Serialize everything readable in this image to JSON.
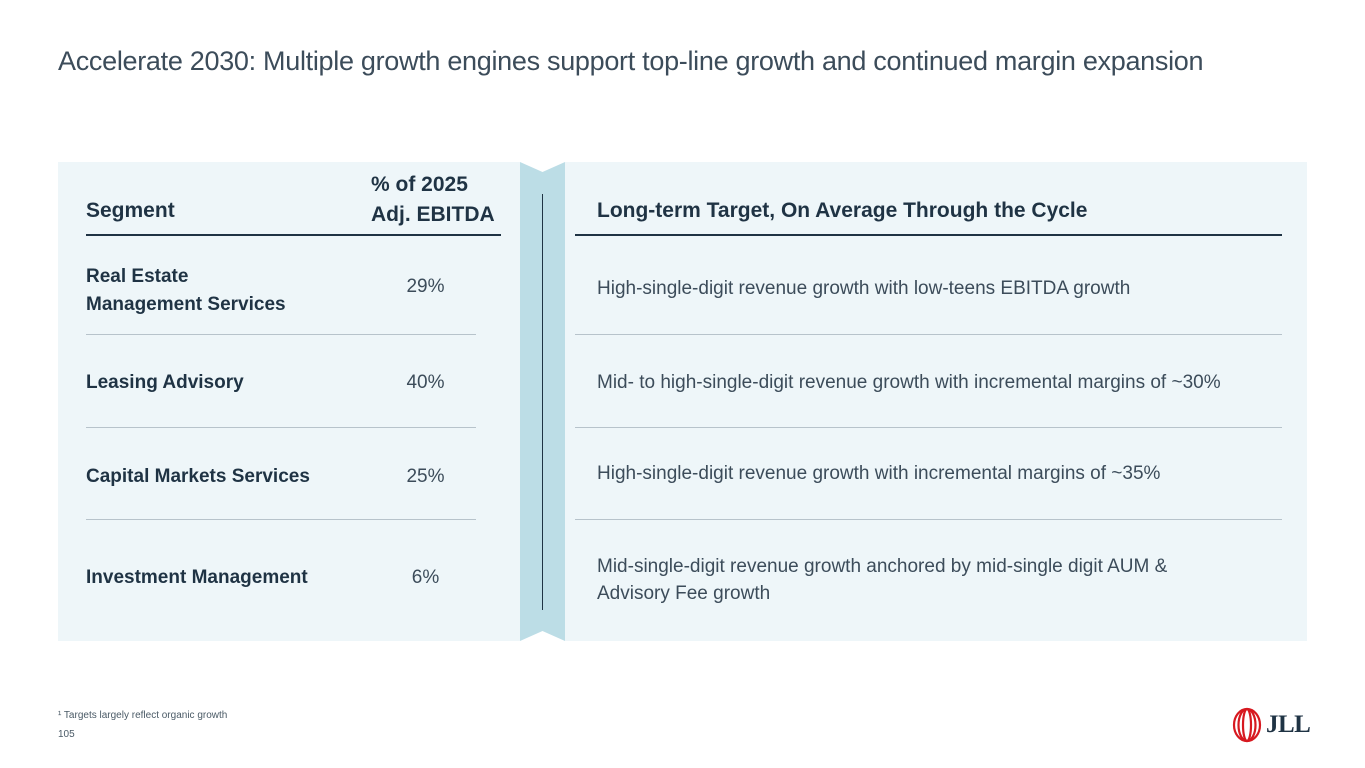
{
  "title": "Accelerate 2030: Multiple growth engines support top-line growth and continued margin expansion",
  "table": {
    "headers": {
      "segment": "Segment",
      "pct_line1": "% of 2025",
      "pct_line2": "Adj. EBITDA",
      "target": "Long-term Target, On Average Through the Cycle"
    },
    "rows": [
      {
        "segment_line1": "Real Estate",
        "segment_line2": "Management Services",
        "pct": "29%",
        "target": "High-single-digit revenue growth with low-teens EBITDA growth"
      },
      {
        "segment": "Leasing Advisory",
        "pct": "40%",
        "target": "Mid- to high-single-digit revenue growth with incremental margins of ~30%"
      },
      {
        "segment": "Capital Markets Services",
        "pct": "25%",
        "target": "High-single-digit revenue growth with incremental margins of ~35%"
      },
      {
        "segment": "Investment Management",
        "pct": "6%",
        "target_line1": "Mid-single-digit revenue growth anchored by mid-single digit AUM &",
        "target_line2": "Advisory Fee growth"
      }
    ]
  },
  "footnote": "¹ Targets largely reflect organic growth",
  "page_number": "105",
  "logo": {
    "text": "JLL",
    "color": "#d71920"
  }
}
